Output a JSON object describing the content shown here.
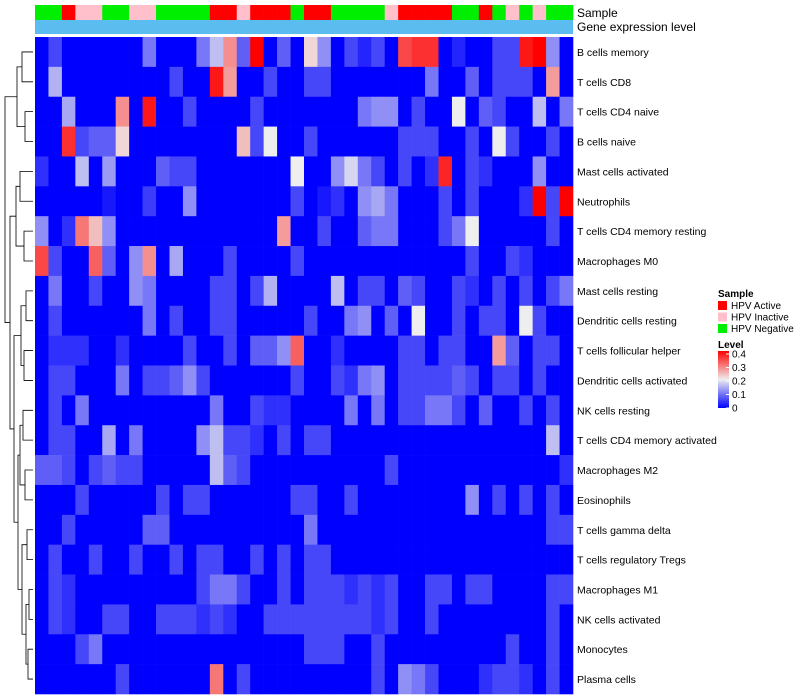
{
  "chart_data": {
    "type": "heatmap",
    "title": "",
    "annotation_labels": {
      "sample": "Sample",
      "gene": "Gene expression level"
    },
    "sample_groups": [
      "Negative",
      "Negative",
      "Active",
      "Inactive",
      "Inactive",
      "Negative",
      "Negative",
      "Inactive",
      "Inactive",
      "Negative",
      "Negative",
      "Negative",
      "Negative",
      "Active",
      "Active",
      "Inactive",
      "Active",
      "Active",
      "Active",
      "Negative",
      "Active",
      "Active",
      "Negative",
      "Negative",
      "Negative",
      "Negative",
      "Inactive",
      "Active",
      "Active",
      "Active",
      "Active",
      "Negative",
      "Negative",
      "Active",
      "Negative",
      "Inactive",
      "Negative",
      "Inactive",
      "Negative",
      "Negative"
    ],
    "sample_colors": {
      "Active": "#ff0000",
      "Inactive": "#ffc0cb",
      "Negative": "#00ee00"
    },
    "gene_bar_color": "#5bbcf0",
    "rows": [
      "B cells memory",
      "T cells CD8",
      "T cells CD4 naive",
      "B cells naive",
      "Mast cells activated",
      "Neutrophils",
      "T cells CD4 memory resting",
      "Macrophages M0",
      "Mast cells resting",
      "Dendritic cells resting",
      "T cells follicular helper",
      "Dendritic cells activated",
      "NK cells resting",
      "T cells CD4 memory activated",
      "Macrophages M2",
      "Eosinophils",
      "T cells gamma delta",
      "T cells regulatory  Tregs",
      "Macrophages M1",
      "NK cells activated",
      "Monocytes",
      "Plasma cells"
    ],
    "values": [
      [
        0,
        0.06,
        0,
        0,
        0,
        0,
        0,
        0,
        0.1,
        0,
        0,
        0,
        0.1,
        0.16,
        0.28,
        0.08,
        0.4,
        0,
        0.08,
        0,
        0.22,
        0.12,
        0,
        0.06,
        0.03,
        0.06,
        0,
        0.34,
        0.36,
        0.36,
        0,
        0.03,
        0,
        0,
        0.06,
        0.06,
        0.38,
        0.4,
        0.12,
        0
      ],
      [
        0,
        0.15,
        0,
        0,
        0,
        0,
        0,
        0,
        0,
        0,
        0.06,
        0,
        0,
        0.38,
        0.27,
        0,
        0,
        0.06,
        0,
        0,
        0.06,
        0.06,
        0,
        0,
        0,
        0,
        0,
        0,
        0,
        0.1,
        0,
        0,
        0.08,
        0,
        0.06,
        0.06,
        0.06,
        0,
        0.27,
        0
      ],
      [
        0,
        0,
        0.14,
        0,
        0,
        0,
        0.28,
        0,
        0.38,
        0,
        0,
        0.06,
        0,
        0,
        0,
        0,
        0.06,
        0,
        0,
        0,
        0,
        0,
        0,
        0,
        0.1,
        0.12,
        0.12,
        0,
        0.06,
        0,
        0,
        0.2,
        0,
        0.08,
        0.06,
        0,
        0,
        0.16,
        0,
        0.1
      ],
      [
        0,
        0,
        0.36,
        0.06,
        0.08,
        0.08,
        0.22,
        0,
        0,
        0,
        0,
        0,
        0,
        0,
        0,
        0.24,
        0.06,
        0.2,
        0,
        0,
        0.06,
        0,
        0,
        0,
        0,
        0,
        0,
        0.06,
        0.06,
        0.06,
        0,
        0,
        0.06,
        0,
        0.2,
        0.06,
        0,
        0,
        0.06,
        0
      ],
      [
        0.04,
        0,
        0,
        0.16,
        0,
        0.13,
        0,
        0,
        0,
        0.08,
        0.06,
        0.06,
        0,
        0,
        0,
        0,
        0,
        0,
        0,
        0.2,
        0,
        0,
        0.12,
        0.18,
        0.1,
        0.06,
        0,
        0.06,
        0,
        0.04,
        0.37,
        0,
        0.06,
        0.04,
        0,
        0,
        0,
        0.12,
        0,
        0
      ],
      [
        0,
        0,
        0,
        0,
        0,
        0.02,
        0,
        0,
        0.05,
        0,
        0,
        0.12,
        0,
        0,
        0,
        0,
        0,
        0,
        0,
        0.06,
        0,
        0.02,
        0.04,
        0,
        0.12,
        0.14,
        0.1,
        0,
        0,
        0,
        0.06,
        0,
        0.06,
        0,
        0,
        0,
        0.04,
        0.4,
        0.06,
        0.4
      ],
      [
        0.12,
        0,
        0.04,
        0.3,
        0.24,
        0.12,
        0,
        0,
        0,
        0,
        0,
        0,
        0,
        0,
        0,
        0,
        0,
        0,
        0.27,
        0,
        0,
        0.06,
        0,
        0,
        0.08,
        0.1,
        0.1,
        0,
        0,
        0,
        0.06,
        0.1,
        0.2,
        0,
        0,
        0,
        0,
        0,
        0.06,
        0
      ],
      [
        0.34,
        0.06,
        0,
        0,
        0.32,
        0.08,
        0,
        0.12,
        0.28,
        0,
        0.14,
        0,
        0,
        0,
        0.06,
        0,
        0,
        0,
        0,
        0.06,
        0,
        0,
        0,
        0,
        0,
        0,
        0,
        0,
        0,
        0,
        0,
        0,
        0.06,
        0,
        0,
        0.06,
        0.04,
        0,
        0,
        0
      ],
      [
        0,
        0.1,
        0,
        0,
        0.06,
        0,
        0,
        0.12,
        0.1,
        0,
        0,
        0,
        0,
        0.06,
        0.06,
        0,
        0.06,
        0.15,
        0,
        0,
        0,
        0,
        0.16,
        0,
        0.06,
        0.06,
        0,
        0.08,
        0.06,
        0,
        0,
        0.06,
        0.04,
        0,
        0.06,
        0,
        0.06,
        0,
        0.06,
        0.1
      ],
      [
        0,
        0.06,
        0,
        0,
        0,
        0,
        0,
        0,
        0.1,
        0,
        0.06,
        0,
        0,
        0.06,
        0.06,
        0,
        0,
        0,
        0,
        0,
        0.06,
        0,
        0,
        0.1,
        0.12,
        0,
        0.08,
        0,
        0.2,
        0,
        0,
        0.06,
        0,
        0.06,
        0.06,
        0,
        0.2,
        0.06,
        0,
        0
      ],
      [
        0,
        0.04,
        0.04,
        0.04,
        0,
        0,
        0.04,
        0,
        0,
        0,
        0,
        0.06,
        0,
        0,
        0.06,
        0,
        0.08,
        0.08,
        0.12,
        0.32,
        0,
        0,
        0.04,
        0,
        0,
        0,
        0,
        0.06,
        0.06,
        0,
        0.06,
        0.06,
        0,
        0,
        0.27,
        0.08,
        0,
        0.06,
        0.06,
        0
      ],
      [
        0,
        0.06,
        0.06,
        0,
        0,
        0,
        0.1,
        0,
        0.06,
        0.06,
        0.08,
        0.12,
        0.06,
        0,
        0,
        0,
        0,
        0,
        0,
        0.06,
        0,
        0,
        0.06,
        0.04,
        0.1,
        0.12,
        0,
        0.06,
        0.06,
        0.06,
        0.06,
        0.08,
        0.06,
        0,
        0.06,
        0.06,
        0,
        0.06,
        0,
        0
      ],
      [
        0,
        0.06,
        0,
        0.1,
        0,
        0,
        0,
        0,
        0,
        0,
        0,
        0,
        0,
        0.1,
        0,
        0,
        0.06,
        0.04,
        0.04,
        0,
        0,
        0,
        0,
        0.1,
        0,
        0.1,
        0,
        0.06,
        0.06,
        0.1,
        0.1,
        0.06,
        0,
        0.08,
        0,
        0,
        0.06,
        0,
        0.06,
        0
      ],
      [
        0,
        0.06,
        0.06,
        0,
        0,
        0.14,
        0,
        0.1,
        0,
        0,
        0,
        0,
        0.12,
        0.16,
        0.06,
        0.06,
        0.04,
        0,
        0.06,
        0,
        0.06,
        0.06,
        0,
        0,
        0,
        0,
        0,
        0,
        0,
        0,
        0,
        0,
        0,
        0,
        0,
        0,
        0,
        0,
        0.16,
        0
      ],
      [
        0.08,
        0.08,
        0.06,
        0,
        0.06,
        0.08,
        0.06,
        0.06,
        0,
        0,
        0,
        0,
        0,
        0.16,
        0.08,
        0.06,
        0,
        0,
        0,
        0,
        0,
        0,
        0,
        0,
        0,
        0,
        0.06,
        0,
        0,
        0,
        0,
        0,
        0,
        0,
        0,
        0,
        0,
        0,
        0,
        0.04
      ],
      [
        0,
        0,
        0,
        0.06,
        0,
        0,
        0,
        0,
        0,
        0.06,
        0,
        0.06,
        0.06,
        0,
        0,
        0,
        0,
        0,
        0,
        0.06,
        0.06,
        0,
        0,
        0.06,
        0,
        0,
        0,
        0,
        0,
        0,
        0,
        0,
        0.12,
        0,
        0.06,
        0,
        0.06,
        0,
        0.06,
        0
      ],
      [
        0,
        0,
        0.06,
        0,
        0,
        0,
        0,
        0,
        0.08,
        0.08,
        0,
        0,
        0,
        0,
        0,
        0,
        0,
        0,
        0,
        0,
        0.1,
        0,
        0,
        0,
        0,
        0,
        0,
        0,
        0,
        0,
        0,
        0,
        0,
        0,
        0,
        0,
        0,
        0,
        0.06,
        0.06
      ],
      [
        0,
        0.06,
        0,
        0,
        0.06,
        0,
        0,
        0.06,
        0,
        0,
        0.06,
        0,
        0.06,
        0.06,
        0,
        0,
        0.06,
        0,
        0.06,
        0,
        0.06,
        0.06,
        0,
        0,
        0,
        0,
        0,
        0,
        0,
        0,
        0,
        0,
        0,
        0,
        0,
        0,
        0,
        0,
        0,
        0
      ],
      [
        0,
        0.06,
        0.04,
        0,
        0,
        0,
        0,
        0,
        0,
        0,
        0,
        0,
        0.06,
        0.1,
        0.1,
        0.06,
        0,
        0,
        0.06,
        0,
        0.06,
        0.06,
        0.06,
        0.04,
        0.06,
        0.04,
        0.06,
        0,
        0,
        0.06,
        0.06,
        0,
        0.06,
        0.06,
        0,
        0,
        0,
        0,
        0.06,
        0.06
      ],
      [
        0,
        0.06,
        0.04,
        0,
        0,
        0.06,
        0.06,
        0,
        0,
        0.06,
        0.06,
        0.06,
        0.04,
        0.06,
        0.04,
        0,
        0,
        0.06,
        0.06,
        0.06,
        0.06,
        0.06,
        0.06,
        0.06,
        0.06,
        0.04,
        0.06,
        0,
        0,
        0.06,
        0,
        0,
        0,
        0,
        0,
        0,
        0,
        0,
        0.06,
        0
      ],
      [
        0,
        0,
        0,
        0.06,
        0.1,
        0,
        0,
        0,
        0,
        0,
        0,
        0,
        0,
        0,
        0,
        0,
        0,
        0,
        0,
        0,
        0.06,
        0.06,
        0.06,
        0,
        0,
        0.06,
        0,
        0,
        0,
        0,
        0,
        0,
        0,
        0,
        0,
        0.06,
        0,
        0,
        0.06,
        0
      ],
      [
        0,
        0,
        0,
        0,
        0,
        0,
        0.06,
        0,
        0,
        0,
        0,
        0,
        0,
        0.3,
        0,
        0.06,
        0,
        0,
        0,
        0,
        0,
        0,
        0,
        0,
        0,
        0.06,
        0,
        0.12,
        0.1,
        0.06,
        0,
        0,
        0,
        0.04,
        0.06,
        0.06,
        0.04,
        0,
        0.06,
        0
      ]
    ],
    "color_scale": {
      "min": 0,
      "max": 0.4,
      "low": "#0000ff",
      "mid": "#eeeeee",
      "high": "#ff0000",
      "midpoint": 0.2
    },
    "legend": {
      "sample_title": "Sample",
      "sample_items": [
        {
          "label": "HPV Active",
          "color": "#ff0000"
        },
        {
          "label": "HPV Inactive",
          "color": "#ffc0cb"
        },
        {
          "label": "HPV Negative",
          "color": "#00ee00"
        }
      ],
      "level_title": "Level",
      "level_ticks": [
        "0.4",
        "0.3",
        "0.2",
        "0.1",
        "0"
      ]
    }
  }
}
